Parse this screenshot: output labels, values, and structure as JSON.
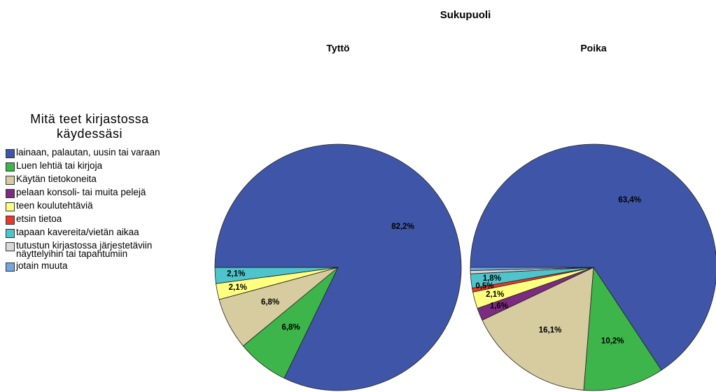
{
  "chart_data": {
    "type": "pie",
    "title": "Sukupuoli",
    "legend_title": "Mitä teet kirjastossa käydessäsi",
    "categories": [
      "lainaan, palautan, uusin tai varaan",
      "Luen lehtiä tai kirjoja",
      "Käytän tietokoneita",
      "pelaan konsoli- tai muita pelejä",
      "teen koulutehtäviä",
      "etsin tietoa",
      "tapaan kavereita/vietän aikaa",
      "tutustun kirjastossa järjestetäviin näyttelyihin tai tapahtumiin",
      "jotain muuta"
    ],
    "colors": [
      "#3f56a8",
      "#3db54a",
      "#d6cc9f",
      "#7b2b80",
      "#ffff80",
      "#e8392b",
      "#4fc4cb",
      "#d9d9d9",
      "#6fa8dc"
    ],
    "series": [
      {
        "name": "Tyttö",
        "values": [
          82.2,
          6.8,
          6.8,
          0,
          2.1,
          0,
          2.1,
          0,
          0
        ],
        "value_labels": [
          "82,2%",
          "6,8%",
          "6,8%",
          null,
          "2,1%",
          null,
          "2,1%",
          null,
          null
        ]
      },
      {
        "name": "Poika",
        "values": [
          63.4,
          10.2,
          16.1,
          1.6,
          2.1,
          0.5,
          1.8,
          0.4,
          0.4
        ],
        "value_labels": [
          "63,4%",
          "10,2%",
          "16,1%",
          "1,6%",
          "2,1%",
          "0,5%",
          "1,8%",
          null,
          null
        ]
      }
    ]
  }
}
